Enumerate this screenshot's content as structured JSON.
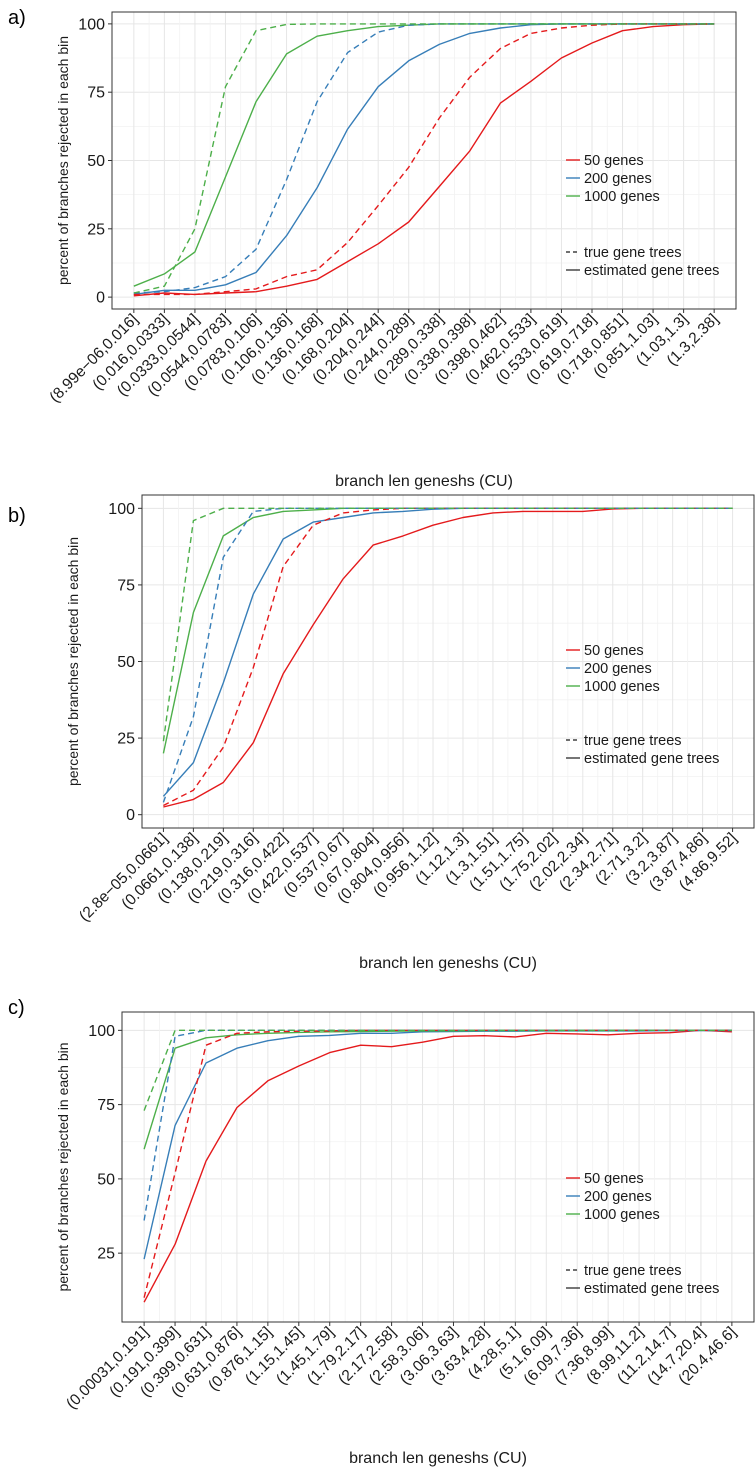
{
  "colors": {
    "50 genes": "#e41a1c",
    "200 genes": "#377eb8",
    "1000 genes": "#4daf4a"
  },
  "legend": {
    "series": [
      "50 genes",
      "200 genes",
      "1000 genes"
    ],
    "styles": [
      {
        "label": "true gene trees",
        "dash": true
      },
      {
        "label": "estimated gene trees",
        "dash": false
      }
    ]
  },
  "chart_data": [
    {
      "type": "line",
      "panel_label": "a)",
      "xlabel": "branch len geneshs (CU)",
      "ylabel": "percent of branches rejected in each bin",
      "yticks": [
        0,
        25,
        50,
        75,
        100
      ],
      "ylim": [
        0,
        100
      ],
      "categories": [
        "(8.99e−06,0.016]",
        "(0.016,0.0333]",
        "(0.0333,0.0544]",
        "(0.0544,0.0783]",
        "(0.0783,0.106]",
        "(0.106,0.136]",
        "(0.136,0.168]",
        "(0.168,0.204]",
        "(0.204,0.244]",
        "(0.244,0.289]",
        "(0.289,0.338]",
        "(0.338,0.398]",
        "(0.398,0.462]",
        "(0.462,0.533]",
        "(0.533,0.619]",
        "(0.619,0.718]",
        "(0.718,0.851]",
        "(0.851,1.03]",
        "(1.03,1.3]",
        "(1.3,2.38]"
      ],
      "series": [
        {
          "name": "50 genes",
          "trees": "estimated",
          "values": [
            0.5,
            1.5,
            1,
            1.5,
            2,
            4,
            6.5,
            13,
            19.5,
            27.5,
            40.5,
            53.5,
            71,
            79,
            87.5,
            93,
            97.5,
            99,
            99.7,
            100
          ]
        },
        {
          "name": "200 genes",
          "trees": "estimated",
          "values": [
            1,
            2.5,
            2.5,
            4.5,
            9,
            22.5,
            40,
            61.5,
            77,
            86.5,
            92.5,
            96.5,
            98.5,
            99.7,
            100,
            100,
            100,
            100,
            100,
            100
          ]
        },
        {
          "name": "1000 genes",
          "trees": "estimated",
          "values": [
            4,
            8.5,
            16.5,
            44,
            71.5,
            89,
            95.5,
            97.5,
            99,
            99.5,
            100,
            100,
            100,
            100,
            100,
            100,
            100,
            100,
            100,
            100
          ]
        },
        {
          "name": "50 genes",
          "trees": "true",
          "values": [
            1,
            1,
            1,
            2,
            3,
            7.5,
            10,
            20,
            33.5,
            47.5,
            65.5,
            80.5,
            91,
            96.5,
            98.5,
            99.5,
            100,
            100,
            100,
            100
          ]
        },
        {
          "name": "200 genes",
          "trees": "true",
          "values": [
            1.5,
            2,
            3.5,
            7.5,
            17.5,
            43,
            71.5,
            89.5,
            97,
            99.5,
            100,
            100,
            100,
            100,
            100,
            100,
            100,
            100,
            100,
            100
          ]
        },
        {
          "name": "1000 genes",
          "trees": "true",
          "values": [
            1.5,
            4,
            25,
            77,
            97.5,
            99.8,
            100,
            100,
            100,
            100,
            100,
            100,
            100,
            100,
            100,
            100,
            100,
            100,
            100,
            100
          ]
        }
      ]
    },
    {
      "type": "line",
      "panel_label": "b)",
      "xlabel": "branch len geneshs (CU)",
      "ylabel": "percent of branches rejected in each bin",
      "yticks": [
        0,
        25,
        50,
        75,
        100
      ],
      "ylim": [
        0,
        100
      ],
      "categories": [
        "(2.8e−05,0.0661]",
        "(0.0661,0.138]",
        "(0.138,0.219]",
        "(0.219,0.316]",
        "(0.316,0.422]",
        "(0.422,0.537]",
        "(0.537,0.67]",
        "(0.67,0.804]",
        "(0.804,0.956]",
        "(0.956,1.12]",
        "(1.12,1.3]",
        "(1.3,1.51]",
        "(1.51,1.75]",
        "(1.75,2.02]",
        "(2.02,2.34]",
        "(2.34,2.71]",
        "(2.71,3.2]",
        "(3.2,3.87]",
        "(3.87,4.86]",
        "(4.86,9.52]"
      ],
      "series": [
        {
          "name": "50 genes",
          "trees": "estimated",
          "values": [
            2.5,
            5,
            10.5,
            23.5,
            46,
            62,
            77,
            88,
            91,
            94.5,
            97,
            98.5,
            99,
            99,
            99,
            99.8,
            100,
            100,
            100,
            100
          ]
        },
        {
          "name": "200 genes",
          "trees": "estimated",
          "values": [
            6,
            17,
            43,
            72,
            90,
            95.5,
            97,
            98.5,
            99,
            99.7,
            100,
            100,
            100,
            100,
            100,
            100,
            100,
            100,
            100,
            100
          ]
        },
        {
          "name": "1000 genes",
          "trees": "estimated",
          "values": [
            20,
            66,
            91,
            97,
            99,
            99.5,
            100,
            100,
            100,
            100,
            100,
            100,
            100,
            100,
            100,
            100,
            100,
            100,
            100,
            100
          ]
        },
        {
          "name": "50 genes",
          "trees": "true",
          "values": [
            3,
            8,
            22,
            48,
            81,
            94.5,
            98.5,
            99.5,
            100,
            100,
            100,
            100,
            100,
            100,
            100,
            100,
            100,
            100,
            100,
            100
          ]
        },
        {
          "name": "200 genes",
          "trees": "true",
          "values": [
            4,
            32,
            84,
            99,
            100,
            100,
            100,
            100,
            100,
            100,
            100,
            100,
            100,
            100,
            100,
            100,
            100,
            100,
            100,
            100
          ]
        },
        {
          "name": "1000 genes",
          "trees": "true",
          "values": [
            24,
            96,
            100,
            100,
            100,
            100,
            100,
            100,
            100,
            100,
            100,
            100,
            100,
            100,
            100,
            100,
            100,
            100,
            100,
            100
          ]
        }
      ]
    },
    {
      "type": "line",
      "panel_label": "c)",
      "xlabel": "branch len geneshs (CU)",
      "ylabel": "percent of branches rejected in each bin",
      "yticks": [
        25,
        50,
        75,
        100
      ],
      "ylim": [
        6,
        102
      ],
      "categories": [
        "(0.00031,0.191]",
        "(0.191,0.399]",
        "(0.399,0.631]",
        "(0.631,0.876]",
        "(0.876,1.15]",
        "(1.15,1.45]",
        "(1.45,1.79]",
        "(1.79,2.17]",
        "(2.17,2.58]",
        "(2.58,3.06]",
        "(3.06,3.63]",
        "(3.63,4.28]",
        "(4.28,5.1]",
        "(5.1,6.09]",
        "(6.09,7.36]",
        "(7.36,8.99]",
        "(8.99,11.2]",
        "(11.2,14.7]",
        "(14.7,20.4]",
        "(20.4,46.6]"
      ],
      "series": [
        {
          "name": "50 genes",
          "trees": "estimated",
          "values": [
            8.5,
            28,
            56,
            74,
            83,
            88,
            92.5,
            95,
            94.5,
            96,
            98,
            98.2,
            97.8,
            99,
            98.8,
            98.5,
            99,
            99.2,
            100,
            99.5
          ]
        },
        {
          "name": "200 genes",
          "trees": "estimated",
          "values": [
            23,
            68,
            89,
            94,
            96.5,
            98,
            98.3,
            99,
            99,
            99.5,
            99.6,
            99.7,
            99.7,
            99.8,
            99.8,
            99.8,
            99.8,
            99.9,
            99.9,
            99.9
          ]
        },
        {
          "name": "1000 genes",
          "trees": "estimated",
          "values": [
            60,
            94,
            97.5,
            98.5,
            99,
            99.3,
            99.5,
            99.6,
            99.7,
            99.8,
            99.8,
            99.9,
            99.9,
            99.9,
            99.9,
            99.9,
            100,
            100,
            100,
            100
          ]
        },
        {
          "name": "50 genes",
          "trees": "true",
          "values": [
            10,
            52,
            95,
            99,
            99.5,
            99.7,
            99.8,
            100,
            100,
            100,
            100,
            100,
            100,
            100,
            100,
            100,
            100,
            100,
            100,
            100
          ]
        },
        {
          "name": "200 genes",
          "trees": "true",
          "values": [
            36,
            98,
            100,
            100,
            100,
            100,
            100,
            100,
            100,
            100,
            100,
            100,
            100,
            100,
            100,
            100,
            100,
            100,
            100,
            100
          ]
        },
        {
          "name": "1000 genes",
          "trees": "true",
          "values": [
            73,
            100,
            100,
            100,
            100,
            100,
            100,
            100,
            100,
            100,
            100,
            100,
            100,
            100,
            100,
            100,
            100,
            100,
            100,
            100
          ]
        }
      ]
    }
  ]
}
